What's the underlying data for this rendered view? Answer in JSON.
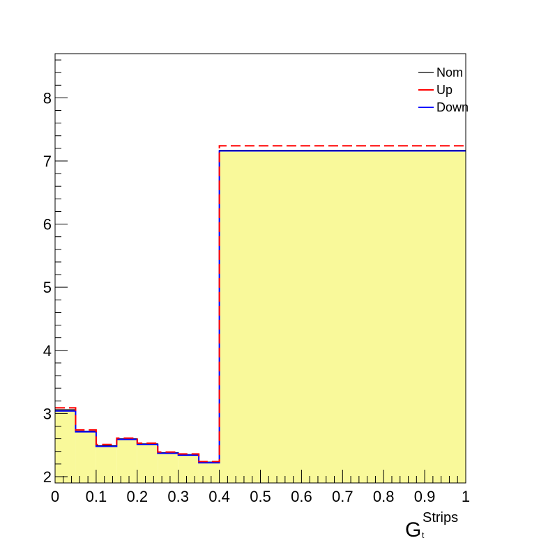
{
  "chart_data": {
    "type": "line",
    "xlabel": {
      "main": "G",
      "superscript": "Strips",
      "subscript": "t"
    },
    "xlim": [
      0,
      1
    ],
    "ylim": [
      1.9,
      8.7
    ],
    "x_tick_labels": [
      "0",
      "0.1",
      "0.2",
      "0.3",
      "0.4",
      "0.5",
      "0.6",
      "0.7",
      "0.8",
      "0.9",
      "1"
    ],
    "y_tick_labels": [
      "2",
      "3",
      "4",
      "5",
      "6",
      "7",
      "8"
    ],
    "bin_edges": [
      0,
      0.05,
      0.1,
      0.15,
      0.2,
      0.25,
      0.3,
      0.35,
      0.4,
      1.0
    ],
    "series": [
      {
        "name": "Nom",
        "color": "#000000",
        "fill": "#f9f99a",
        "values": [
          3.06,
          2.72,
          2.49,
          2.6,
          2.52,
          2.38,
          2.35,
          2.23,
          7.17
        ]
      },
      {
        "name": "Up",
        "color": "#ff0000",
        "values": [
          3.09,
          2.74,
          2.51,
          2.61,
          2.53,
          2.39,
          2.36,
          2.24,
          7.24
        ]
      },
      {
        "name": "Down",
        "color": "#0000ff",
        "values": [
          3.04,
          2.71,
          2.48,
          2.59,
          2.51,
          2.37,
          2.34,
          2.22,
          7.16
        ]
      }
    ],
    "legend_position": "top-right",
    "grid": false
  }
}
